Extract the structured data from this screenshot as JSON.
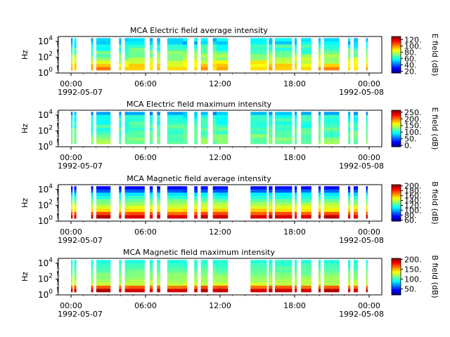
{
  "chart_data": [
    {
      "type": "heatmap",
      "title": "MCA  Electric field average intensity",
      "ylabel": "Hz",
      "colorbar_label": "E field (dB)",
      "colorbar_ticks": [
        "20.",
        "40.",
        "60.",
        "80.",
        "100.",
        "120."
      ],
      "clim": [
        14,
        130
      ],
      "profile": "e_avg",
      "yticks": [
        {
          "base": "10",
          "exp": "0"
        },
        {
          "base": "10",
          "exp": "2"
        },
        {
          "base": "10",
          "exp": "4"
        }
      ],
      "ylim_log10": [
        0,
        4.6
      ],
      "xticks": [
        "00:00",
        "06:00",
        "12:00",
        "18:00",
        "00:00"
      ],
      "date_labels": [
        "1992-05-07",
        "1992-05-08"
      ]
    },
    {
      "type": "heatmap",
      "title": "MCA  Electric field maximum intensity",
      "ylabel": "Hz",
      "colorbar_label": "E field (dB)",
      "colorbar_ticks": [
        "0.",
        "50.",
        "100.",
        "150.",
        "200.",
        "250."
      ],
      "clim": [
        -10,
        265
      ],
      "profile": "e_max",
      "yticks": [
        {
          "base": "10",
          "exp": "0"
        },
        {
          "base": "10",
          "exp": "2"
        },
        {
          "base": "10",
          "exp": "4"
        }
      ],
      "ylim_log10": [
        0,
        4.6
      ],
      "xticks": [
        "00:00",
        "06:00",
        "12:00",
        "18:00",
        "00:00"
      ],
      "date_labels": [
        "1992-05-07",
        "1992-05-08"
      ]
    },
    {
      "type": "heatmap",
      "title": "MCA  Magnetic field average intensity",
      "ylabel": "Hz",
      "colorbar_label": "B field (dB)",
      "colorbar_ticks": [
        "60.",
        "80.",
        "100.",
        "120.",
        "140.",
        "160.",
        "180.",
        "200."
      ],
      "clim": [
        55,
        205
      ],
      "profile": "b_avg",
      "yticks": [
        {
          "base": "10",
          "exp": "0"
        },
        {
          "base": "10",
          "exp": "2"
        },
        {
          "base": "10",
          "exp": "4"
        }
      ],
      "ylim_log10": [
        0,
        4.6
      ],
      "xticks": [
        "00:00",
        "06:00",
        "12:00",
        "18:00",
        "00:00"
      ],
      "date_labels": [
        "1992-05-07",
        "1992-05-08"
      ]
    },
    {
      "type": "heatmap",
      "title": "MCA  Magnetic field maximum intensity",
      "ylabel": "Hz",
      "colorbar_label": "B field (dB)",
      "colorbar_ticks": [
        "50.",
        "100.",
        "150.",
        "200."
      ],
      "clim": [
        20,
        205
      ],
      "profile": "b_max",
      "yticks": [
        {
          "base": "10",
          "exp": "0"
        },
        {
          "base": "10",
          "exp": "2"
        },
        {
          "base": "10",
          "exp": "4"
        }
      ],
      "ylim_log10": [
        0,
        4.6
      ],
      "xticks": [
        "00:00",
        "06:00",
        "12:00",
        "18:00",
        "00:00"
      ],
      "date_labels": [
        "1992-05-07",
        "1992-05-08"
      ]
    }
  ],
  "data_time_segments": [
    [
      "00:00",
      "00:07"
    ],
    [
      "00:15",
      "00:25"
    ],
    [
      "01:37",
      "01:46"
    ],
    [
      "02:02",
      "03:10"
    ],
    [
      "03:52",
      "04:02"
    ],
    [
      "04:20",
      "05:55"
    ],
    [
      "06:20",
      "06:34"
    ],
    [
      "06:55",
      "07:10"
    ],
    [
      "07:45",
      "09:20"
    ],
    [
      "09:55",
      "10:10"
    ],
    [
      "10:27",
      "11:00"
    ],
    [
      "11:25",
      "12:37"
    ],
    [
      "14:27",
      "15:45"
    ],
    [
      "15:55",
      "16:12"
    ],
    [
      "16:25",
      "17:47"
    ],
    [
      "18:00",
      "18:10"
    ],
    [
      "18:31",
      "19:20"
    ],
    [
      "19:55",
      "20:05"
    ],
    [
      "20:22",
      "21:35"
    ],
    [
      "22:18",
      "22:28"
    ],
    [
      "22:45",
      "23:05"
    ],
    [
      "23:45",
      "23:52"
    ]
  ]
}
